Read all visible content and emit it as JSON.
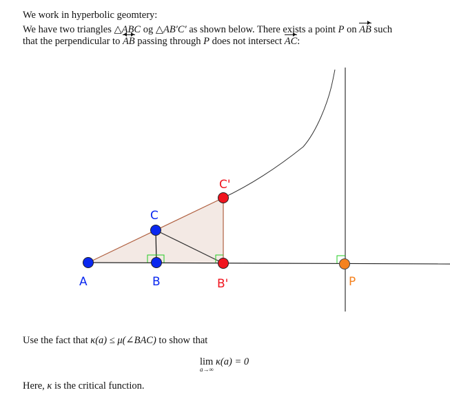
{
  "intro": {
    "line1": "We work in hyperbolic geomtery:",
    "line2_a": "We have two triangles ",
    "tri1": "△ABC",
    "line2_b": " og ",
    "tri2": "△AB′C′",
    "line2_c": " as shown below.  There exists a point ",
    "p": "P",
    "line2_d": " on ",
    "ray_ab": "AB",
    "line2_e": " such",
    "line3_a": "that the perpendicular to ",
    "line_ab": "AB",
    "line3_b": " passing through ",
    "line3_c": " does not intersect ",
    "ray_ac": "AC",
    "line3_d": ":"
  },
  "figure": {
    "points": [
      {
        "label": "A",
        "color": "#0a28f0"
      },
      {
        "label": "B",
        "color": "#0a28f0"
      },
      {
        "label": "C",
        "color": "#0a28f0"
      },
      {
        "label": "B'",
        "color": "#f0141e"
      },
      {
        "label": "C'",
        "color": "#f0141e"
      },
      {
        "label": "P",
        "color": "#f5821e"
      }
    ],
    "fill_color": "#f3e9e4",
    "edge_color": "#b06040",
    "right_angle_color": "#22cc22"
  },
  "outro": {
    "line1_a": "Use the fact that ",
    "ineq": "κ(a) ≤ μ(∠BAC)",
    "line1_b": " to show that",
    "lim": "lim",
    "lim_sub": "a→∞",
    "lim_expr": "κ(a) = 0",
    "line2_a": "Here, ",
    "kappa": "κ",
    "line2_b": " is the critical function."
  }
}
